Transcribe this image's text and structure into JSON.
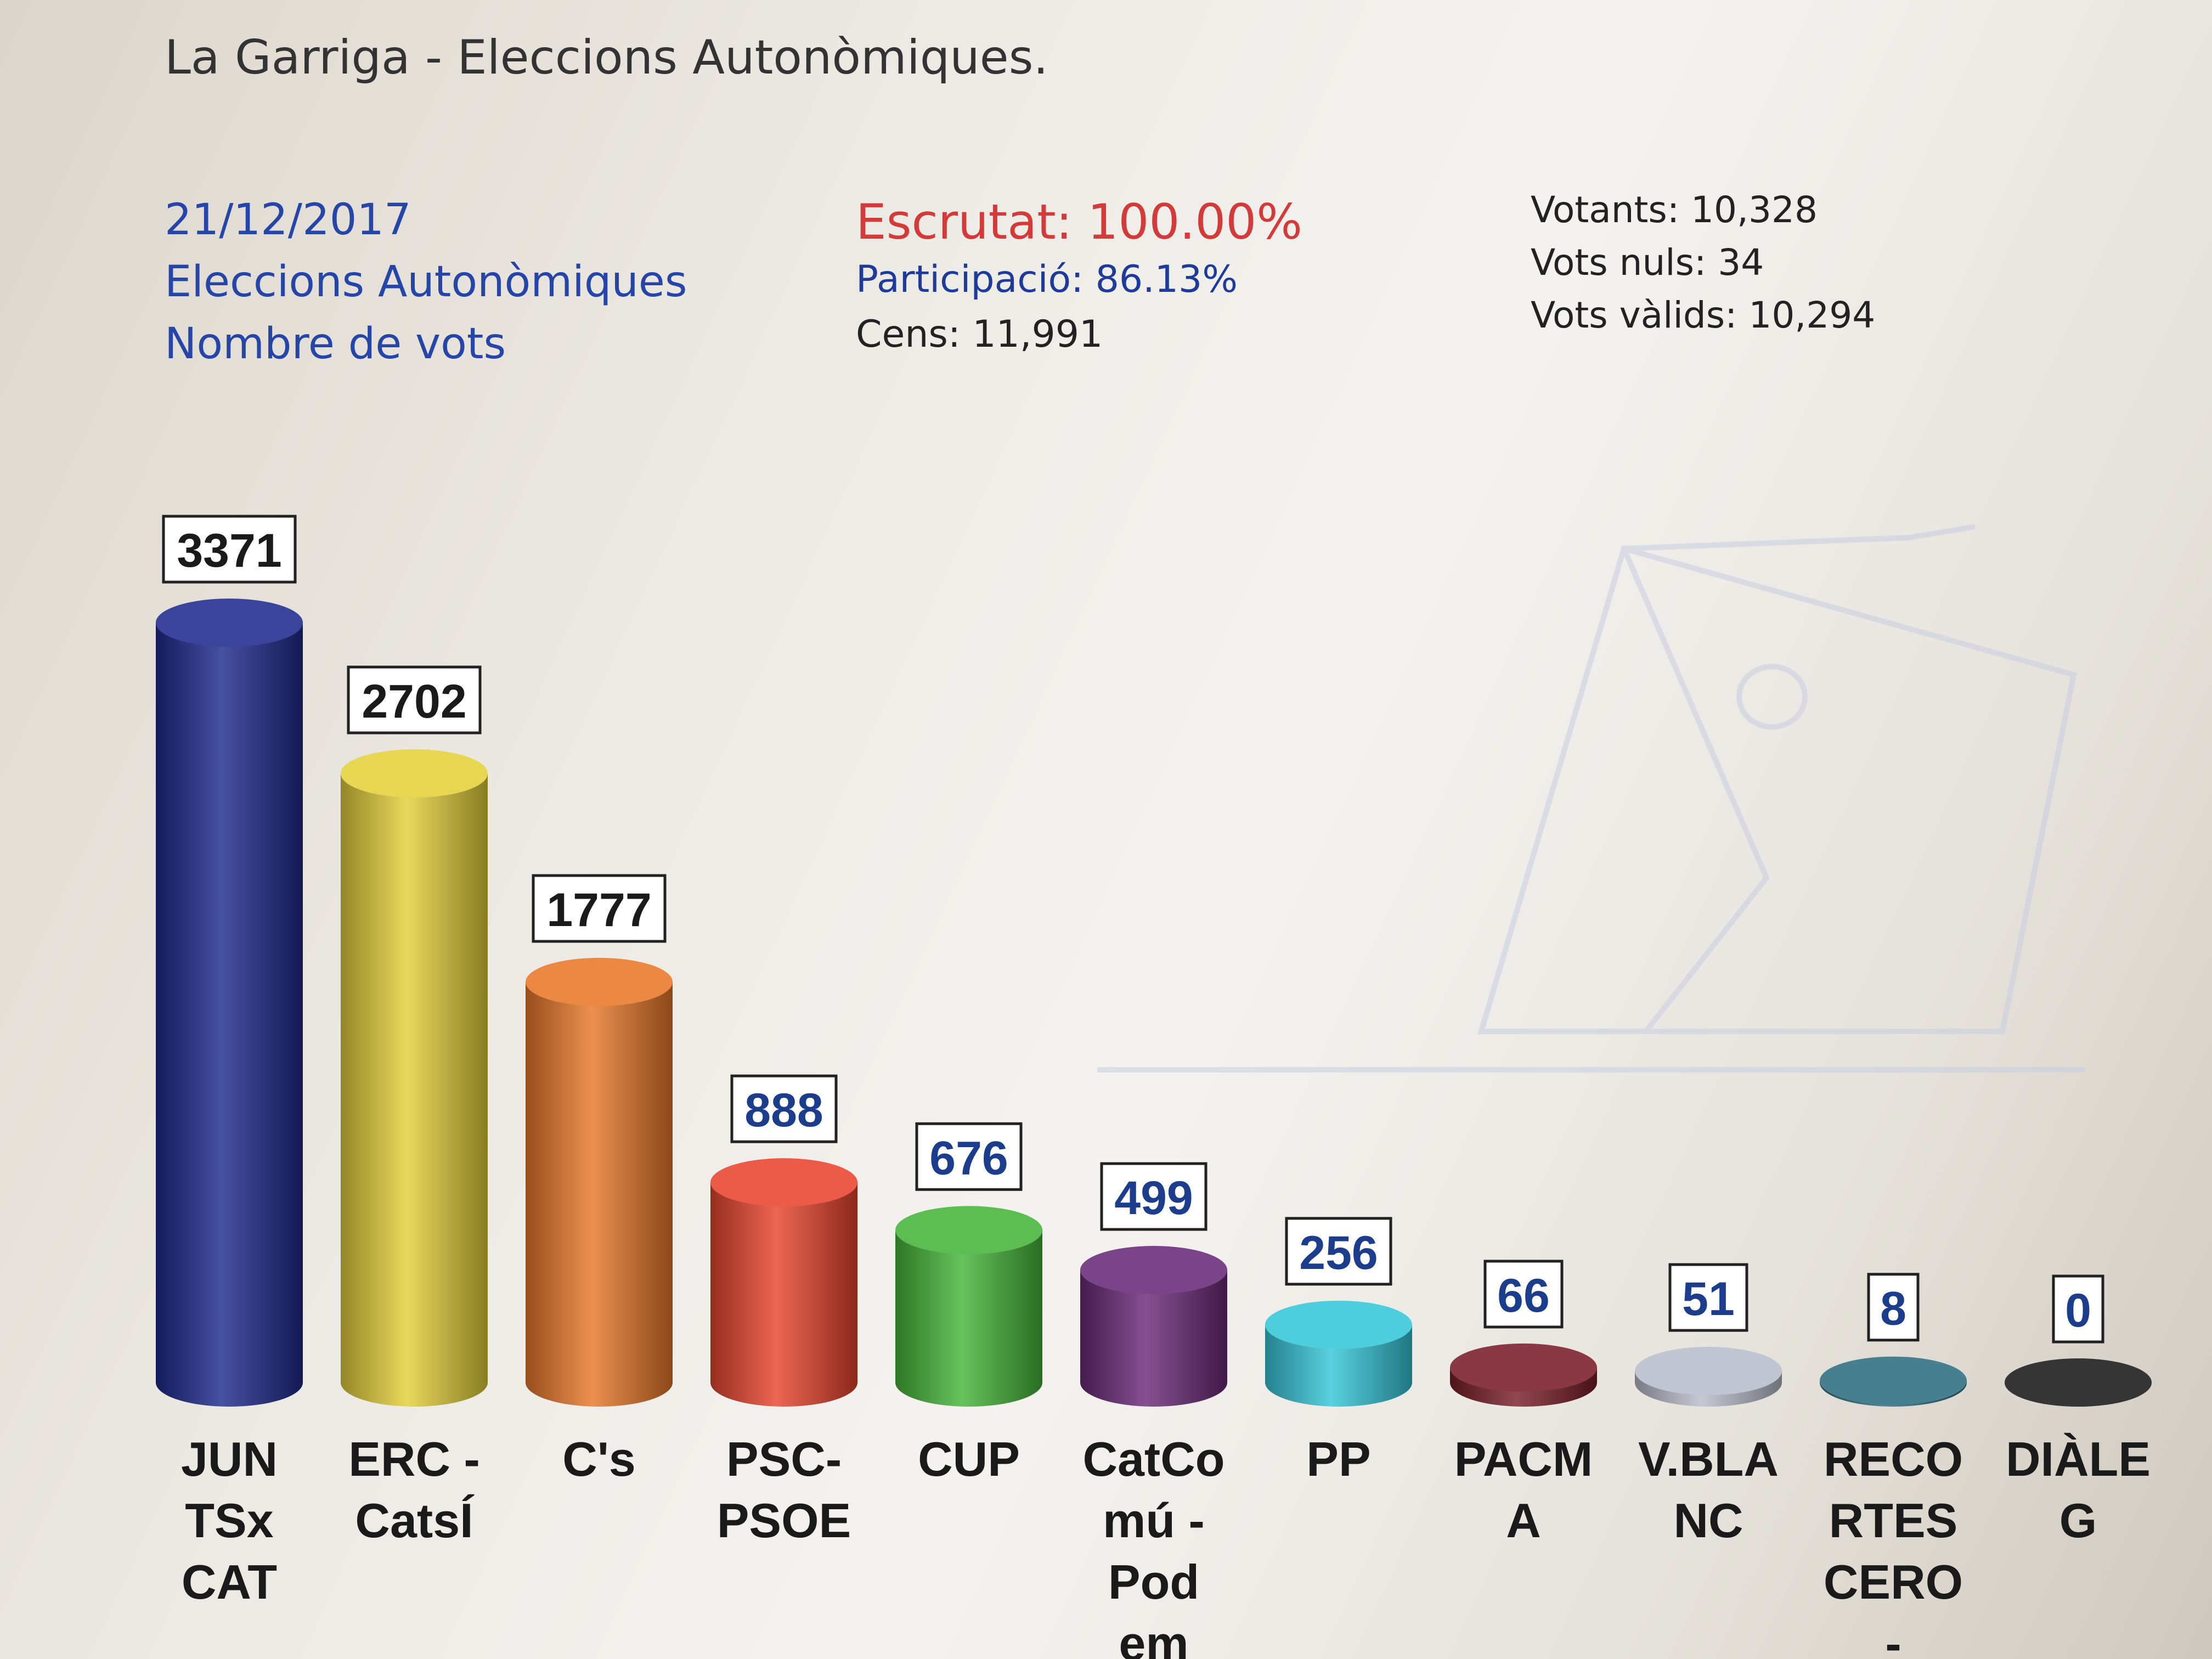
{
  "header": {
    "title": "La Garriga - Eleccions Autonòmiques."
  },
  "info_left": {
    "date": "21/12/2017",
    "election": "Eleccions Autonòmiques",
    "measure": "Nombre de vots"
  },
  "info_mid": {
    "scrutinized": "Escrutat: 100.00%",
    "participation": "Participació: 86.13%",
    "census": "Cens: 11,991"
  },
  "info_right": {
    "voters": "Votants: 10,328",
    "null_votes": "Vots nuls: 34",
    "valid_votes": "Vots vàlids: 10,294"
  },
  "chart_data": {
    "type": "bar",
    "title": "",
    "xlabel": "",
    "ylabel": "",
    "ylim": [
      0,
      3371
    ],
    "categories": [
      [
        "JUN",
        "TSx",
        "CAT"
      ],
      [
        "ERC -",
        "CatsÍ"
      ],
      [
        "C's"
      ],
      [
        "PSC-",
        "PSOE"
      ],
      [
        "CUP"
      ],
      [
        "CatCo",
        "mú -",
        "Pod",
        "em"
      ],
      [
        "PP"
      ],
      [
        "PACM",
        "A"
      ],
      [
        "V.BLA",
        "NC"
      ],
      [
        "RECO",
        "RTES",
        "CERO",
        "-"
      ],
      [
        "DIÀLE",
        "G"
      ]
    ],
    "values": [
      3371,
      2702,
      1777,
      888,
      676,
      499,
      256,
      66,
      51,
      8,
      0
    ],
    "colors": [
      "#1f2a8c",
      "#e3d03a",
      "#e8782a",
      "#e8452e",
      "#46b53a",
      "#6a2a78",
      "#36c7d8",
      "#7a1e2a",
      "#b9bccb",
      "#2e6d80",
      "#1a1a1a"
    ],
    "label_color": "#1c3d8c",
    "grid": false,
    "legend": "none"
  }
}
